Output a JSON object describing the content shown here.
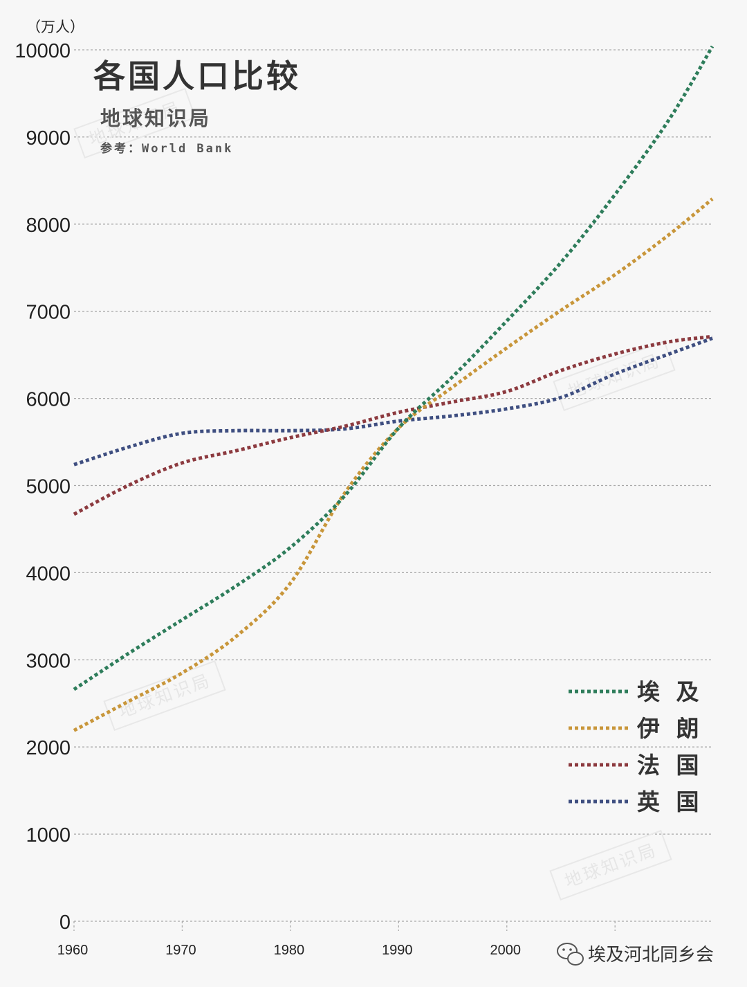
{
  "header": {
    "title": "各国人口比较",
    "subtitle": "地球知识局",
    "source": "参考：World Bank"
  },
  "watermark": "地球知识局",
  "footer": {
    "account": "埃及河北同乡会"
  },
  "chart_data": {
    "type": "line",
    "title": "各国人口比较",
    "unit_label": "（万人）",
    "xlim": [
      1960,
      2019
    ],
    "ylim": [
      0,
      10000
    ],
    "x_ticks": [
      1960,
      1970,
      1980,
      1990,
      2000
    ],
    "y_ticks": [
      0,
      1000,
      2000,
      3000,
      4000,
      5000,
      6000,
      7000,
      8000,
      9000,
      10000
    ],
    "grid": true,
    "line_style": "dotted",
    "legend_position": "bottom-right",
    "x": [
      1960,
      1965,
      1970,
      1975,
      1980,
      1985,
      1990,
      1995,
      2000,
      2005,
      2010,
      2015,
      2019
    ],
    "series": [
      {
        "name": "埃 及",
        "color": "#2e7d5b",
        "values": [
          2660,
          3070,
          3460,
          3850,
          4290,
          4880,
          5660,
          6250,
          6890,
          7560,
          8340,
          9200,
          10040
        ]
      },
      {
        "name": "伊 朗",
        "color": "#c8963a",
        "values": [
          2190,
          2520,
          2850,
          3270,
          3880,
          4910,
          5660,
          6130,
          6580,
          7010,
          7420,
          7880,
          8290
        ]
      },
      {
        "name": "法 国",
        "color": "#8c3a3f",
        "values": [
          4670,
          5000,
          5260,
          5400,
          5550,
          5680,
          5840,
          5960,
          6080,
          6320,
          6510,
          6650,
          6710
        ]
      },
      {
        "name": "英 国",
        "color": "#3e4e80",
        "values": [
          5240,
          5440,
          5600,
          5630,
          5630,
          5650,
          5740,
          5800,
          5880,
          6010,
          6280,
          6510,
          6690
        ]
      }
    ]
  }
}
